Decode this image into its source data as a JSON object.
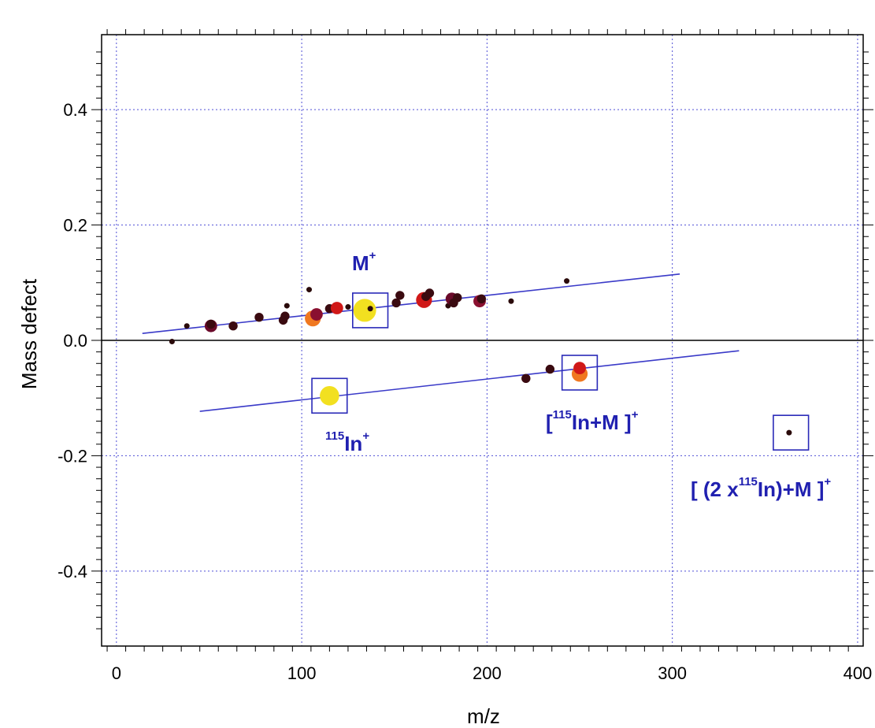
{
  "chart_data": {
    "type": "scatter",
    "title": "",
    "xlabel": "m/z",
    "ylabel": "Mass defect",
    "xlim": [
      -8,
      403
    ],
    "ylim": [
      -0.53,
      0.53
    ],
    "x_ticks": [
      0,
      100,
      200,
      300,
      400
    ],
    "x_tick_labels": [
      "0",
      "100",
      "200",
      "300",
      "400"
    ],
    "y_ticks": [
      0.4,
      0.2,
      0.0,
      -0.2,
      -0.4
    ],
    "y_tick_labels": [
      "0.4",
      "0.2",
      "0.0",
      "-0.2",
      "-0.4"
    ],
    "grid": true,
    "grid_style": "dotted",
    "colors": {
      "grid": "#4f4fd6",
      "trend_line": "#3a3ac8",
      "annotation": "#2020b0",
      "box": "#2a2ab8"
    },
    "zero_line_y": 0,
    "points": [
      {
        "x": 30,
        "y": -0.002,
        "size": 1,
        "color": "#2a0a0a"
      },
      {
        "x": 38,
        "y": 0.025,
        "size": 1,
        "color": "#2a0a0a"
      },
      {
        "x": 51,
        "y": 0.025,
        "size": 3,
        "color": "#6a0a2a"
      },
      {
        "x": 51,
        "y": 0.028,
        "size": 2,
        "color": "#3a0a10"
      },
      {
        "x": 63,
        "y": 0.025,
        "size": 2,
        "color": "#3a0a10"
      },
      {
        "x": 77,
        "y": 0.04,
        "size": 2,
        "color": "#3a0a10"
      },
      {
        "x": 90,
        "y": 0.035,
        "size": 2,
        "color": "#3a0a10"
      },
      {
        "x": 91,
        "y": 0.042,
        "size": 2,
        "color": "#3a0a10"
      },
      {
        "x": 92,
        "y": 0.06,
        "size": 1,
        "color": "#2a0a0a"
      },
      {
        "x": 104,
        "y": 0.088,
        "size": 1,
        "color": "#2a0a0a"
      },
      {
        "x": 106,
        "y": 0.038,
        "size": 4,
        "color": "#f07820"
      },
      {
        "x": 108,
        "y": 0.045,
        "size": 3,
        "color": "#8a1030"
      },
      {
        "x": 115,
        "y": 0.055,
        "size": 2,
        "color": "#3a0a10"
      },
      {
        "x": 119,
        "y": 0.056,
        "size": 3,
        "color": "#d01818"
      },
      {
        "x": 125,
        "y": 0.058,
        "size": 1,
        "color": "#2a0a0a"
      },
      {
        "x": 134,
        "y": 0.052,
        "size": 6,
        "color": "#f2e020"
      },
      {
        "x": 137,
        "y": 0.055,
        "size": 1,
        "color": "#2a0a0a"
      },
      {
        "x": 151,
        "y": 0.065,
        "size": 2,
        "color": "#3a0a10"
      },
      {
        "x": 153,
        "y": 0.078,
        "size": 2,
        "color": "#3a0a10"
      },
      {
        "x": 166,
        "y": 0.07,
        "size": 4,
        "color": "#d01818"
      },
      {
        "x": 167,
        "y": 0.076,
        "size": 2,
        "color": "#3a0a10"
      },
      {
        "x": 169,
        "y": 0.082,
        "size": 2,
        "color": "#3a0a10"
      },
      {
        "x": 179,
        "y": 0.06,
        "size": 1,
        "color": "#2a0a0a"
      },
      {
        "x": 181,
        "y": 0.072,
        "size": 3,
        "color": "#6a0a2a"
      },
      {
        "x": 182,
        "y": 0.065,
        "size": 2,
        "color": "#3a0a10"
      },
      {
        "x": 184,
        "y": 0.074,
        "size": 2,
        "color": "#3a0a10"
      },
      {
        "x": 196,
        "y": 0.068,
        "size": 3,
        "color": "#8a1030"
      },
      {
        "x": 197,
        "y": 0.072,
        "size": 2,
        "color": "#3a0a10"
      },
      {
        "x": 213,
        "y": 0.068,
        "size": 1,
        "color": "#2a0a0a"
      },
      {
        "x": 243,
        "y": 0.103,
        "size": 1,
        "color": "#2a0a0a"
      },
      {
        "x": 115,
        "y": -0.096,
        "size": 5,
        "color": "#f2e020"
      },
      {
        "x": 221,
        "y": -0.066,
        "size": 2,
        "color": "#3a0a10"
      },
      {
        "x": 234,
        "y": -0.05,
        "size": 2,
        "color": "#3a0a10"
      },
      {
        "x": 250,
        "y": -0.058,
        "size": 4,
        "color": "#f07820"
      },
      {
        "x": 250,
        "y": -0.048,
        "size": 3,
        "color": "#d01818"
      },
      {
        "x": 363,
        "y": -0.16,
        "size": 1,
        "color": "#2a0a0a"
      }
    ],
    "trend_lines": [
      {
        "x1": 14,
        "y1": 0.012,
        "x2": 304,
        "y2": 0.115
      },
      {
        "x1": 45,
        "y1": -0.123,
        "x2": 336,
        "y2": -0.018
      }
    ],
    "boxes": [
      {
        "x": 137,
        "y": 0.052,
        "dx": 9.5,
        "dy": 0.03
      },
      {
        "x": 115,
        "y": -0.096,
        "dx": 9.5,
        "dy": 0.03
      },
      {
        "x": 250,
        "y": -0.056,
        "dx": 9.5,
        "dy": 0.03
      },
      {
        "x": 364,
        "y": -0.16,
        "dx": 9.5,
        "dy": 0.03
      }
    ],
    "annotations": [
      {
        "base": "M",
        "sup": "+"
      },
      {
        "pre_sup": "115",
        "base": "In",
        "sup": "+"
      },
      {
        "base_pre": "[",
        "pre_sup": "115",
        "base": "In+M ]",
        "sup": "+"
      },
      {
        "base_pre": "[ (2 x",
        "pre_sup": "115",
        "base": "In)+M ]",
        "sup": "+"
      }
    ]
  }
}
